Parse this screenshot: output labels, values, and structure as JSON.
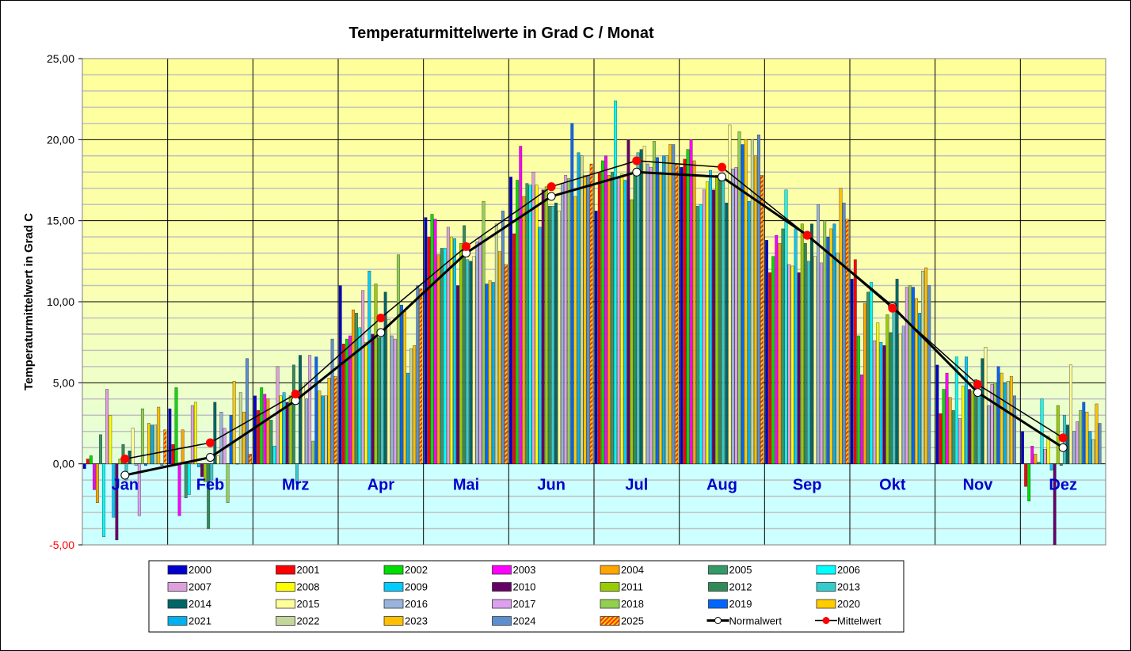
{
  "chart_data": {
    "type": "bar",
    "title": "Temperaturmittelwerte in Grad C / Monat",
    "xlabel": "",
    "ylabel": "Temperaturmittelwert in Grad C",
    "ylim": [
      -5,
      25
    ],
    "grid": true,
    "legend_position": "bottom",
    "y_ticks": [
      "25,00",
      "20,00",
      "15,00",
      "10,00",
      "5,00",
      "0,00",
      "-5,00"
    ],
    "y_tick_values": [
      25,
      20,
      15,
      10,
      5,
      0,
      -5
    ],
    "categories": [
      "Jan",
      "Feb",
      "Mrz",
      "Apr",
      "Mai",
      "Jun",
      "Jul",
      "Aug",
      "Sep",
      "Okt",
      "Nov",
      "Dez"
    ],
    "series": [
      {
        "name": "2000",
        "color": "#0000cc",
        "values": [
          -0.3,
          3.4,
          4.2,
          11.0,
          15.2,
          17.7,
          15.6,
          18.3,
          13.8,
          11.4,
          6.1,
          2.0
        ]
      },
      {
        "name": "2001",
        "color": "#ff0000",
        "values": [
          0.3,
          1.2,
          3.3,
          7.4,
          14.0,
          14.2,
          18.0,
          18.8,
          11.8,
          12.6,
          3.1,
          -1.4
        ]
      },
      {
        "name": "2002",
        "color": "#00dd00",
        "values": [
          0.5,
          4.7,
          4.7,
          7.7,
          15.4,
          17.5,
          18.7,
          19.4,
          12.8,
          7.9,
          4.6,
          -2.3
        ]
      },
      {
        "name": "2003",
        "color": "#ff00ff",
        "values": [
          -1.6,
          -3.2,
          4.3,
          7.9,
          15.1,
          19.6,
          19.0,
          20.0,
          14.1,
          5.5,
          5.6,
          1.1
        ]
      },
      {
        "name": "2004",
        "color": "#ffa500",
        "values": [
          -2.4,
          2.1,
          4.0,
          9.5,
          12.9,
          16.5,
          17.8,
          18.7,
          13.6,
          9.9,
          4.1,
          0.6
        ]
      },
      {
        "name": "2005",
        "color": "#339966",
        "values": [
          1.8,
          -2.1,
          2.7,
          9.3,
          13.3,
          17.3,
          18.0,
          15.9,
          14.5,
          10.6,
          3.3,
          0.1
        ]
      },
      {
        "name": "2006",
        "color": "#00ffff",
        "values": [
          -4.5,
          -1.9,
          1.1,
          8.4,
          13.3,
          17.2,
          22.4,
          16.0,
          16.9,
          11.2,
          6.6,
          4.0
        ]
      },
      {
        "name": "2007",
        "color": "#dda0dd",
        "values": [
          4.6,
          3.6,
          6.0,
          10.7,
          14.6,
          18.0,
          17.6,
          16.9,
          12.3,
          7.6,
          2.8,
          0.9
        ]
      },
      {
        "name": "2008",
        "color": "#ffff00",
        "values": [
          3.0,
          3.8,
          4.2,
          7.5,
          14.0,
          17.2,
          17.9,
          17.4,
          12.2,
          8.7,
          4.8,
          1.7
        ]
      },
      {
        "name": "2009",
        "color": "#00ccff",
        "values": [
          -3.3,
          -0.2,
          4.4,
          11.9,
          13.9,
          14.6,
          17.5,
          18.1,
          14.5,
          7.5,
          6.6,
          -0.4
        ]
      },
      {
        "name": "2010",
        "color": "#660066",
        "values": [
          -4.7,
          -0.8,
          3.8,
          8.0,
          11.0,
          16.9,
          20.0,
          16.9,
          11.8,
          7.3,
          4.6,
          -5.0
        ]
      },
      {
        "name": "2011",
        "color": "#99cc00",
        "values": [
          0.3,
          -1.1,
          4.2,
          11.1,
          13.6,
          17.1,
          16.3,
          17.8,
          14.8,
          9.2,
          4.5,
          3.6
        ]
      },
      {
        "name": "2012",
        "color": "#2e8b57",
        "values": [
          1.2,
          -4.0,
          6.1,
          7.8,
          14.7,
          15.9,
          17.9,
          17.9,
          13.6,
          8.1,
          5.2,
          -0.1
        ]
      },
      {
        "name": "2013",
        "color": "#33cccc",
        "values": [
          -1.0,
          -1.0,
          -1.2,
          8.1,
          12.6,
          15.9,
          19.2,
          17.6,
          12.5,
          10.0,
          4.4,
          3.0
        ]
      },
      {
        "name": "2014",
        "color": "#006666",
        "values": [
          0.8,
          3.8,
          6.7,
          10.6,
          12.5,
          16.1,
          19.4,
          16.1,
          14.8,
          11.4,
          6.5,
          2.4
        ]
      },
      {
        "name": "2015",
        "color": "#ffff99",
        "values": [
          2.2,
          0.5,
          5.0,
          8.9,
          12.8,
          15.6,
          19.6,
          20.9,
          12.8,
          8.0,
          7.2,
          6.1
        ]
      },
      {
        "name": "2016",
        "color": "#99b3dd",
        "values": [
          -0.1,
          3.2,
          4.0,
          7.9,
          13.7,
          17.3,
          18.5,
          18.2,
          16.0,
          8.5,
          3.6,
          2.0
        ]
      },
      {
        "name": "2017",
        "color": "#dda0ee",
        "values": [
          -3.2,
          2.2,
          6.7,
          7.7,
          14.0,
          17.8,
          18.3,
          18.3,
          12.4,
          10.9,
          4.9,
          2.6
        ]
      },
      {
        "name": "2018",
        "color": "#92d050",
        "values": [
          3.4,
          -2.4,
          1.4,
          12.9,
          16.2,
          17.6,
          19.9,
          20.5,
          15.0,
          11.0,
          5.0,
          3.3
        ]
      },
      {
        "name": "2019",
        "color": "#0066ff",
        "values": [
          -0.1,
          3.0,
          6.6,
          9.8,
          11.1,
          21.0,
          18.9,
          19.7,
          14.0,
          10.9,
          6.0,
          3.8
        ]
      },
      {
        "name": "2020",
        "color": "#ffcc00",
        "values": [
          2.5,
          5.1,
          4.5,
          9.4,
          11.3,
          16.5,
          17.9,
          20.0,
          14.5,
          10.2,
          5.6,
          3.2
        ]
      },
      {
        "name": "2021",
        "color": "#00b0f0",
        "values": [
          2.4,
          0.0,
          4.2,
          5.6,
          11.2,
          19.2,
          19.0,
          16.2,
          14.8,
          9.3,
          5.0,
          2.0
        ]
      },
      {
        "name": "2022",
        "color": "#c4d79b",
        "values": [
          2.4,
          4.4,
          4.2,
          7.1,
          14.8,
          19.0,
          19.0,
          20.0,
          13.0,
          11.9,
          5.1,
          1.5
        ]
      },
      {
        "name": "2023",
        "color": "#ffc000",
        "values": [
          3.5,
          3.2,
          5.3,
          7.3,
          13.1,
          17.8,
          19.7,
          19.0,
          17.0,
          12.1,
          5.4,
          3.7
        ]
      },
      {
        "name": "2024",
        "color": "#5b8fd0",
        "values": [
          -0.1,
          6.5,
          7.7,
          11.0,
          15.6,
          17.8,
          19.7,
          20.3,
          16.1,
          11.0,
          4.2,
          2.5
        ]
      },
      {
        "name": "2025",
        "color": "#ff3300",
        "pattern": "hatched",
        "values": [
          2.1,
          0.6,
          5.4,
          10.8,
          12.3,
          18.5,
          18.5,
          17.8,
          15.1,
          null,
          null,
          null
        ]
      }
    ],
    "lines": [
      {
        "name": "Normalwert",
        "values": [
          -0.7,
          0.4,
          3.9,
          8.1,
          13.0,
          16.5,
          18.0,
          17.7,
          14.1,
          9.7,
          4.4,
          1.0
        ]
      },
      {
        "name": "Mittelwert",
        "values": [
          0.3,
          1.3,
          4.3,
          9.0,
          13.4,
          17.1,
          18.7,
          18.3,
          14.1,
          9.6,
          4.9,
          1.6
        ]
      }
    ]
  }
}
